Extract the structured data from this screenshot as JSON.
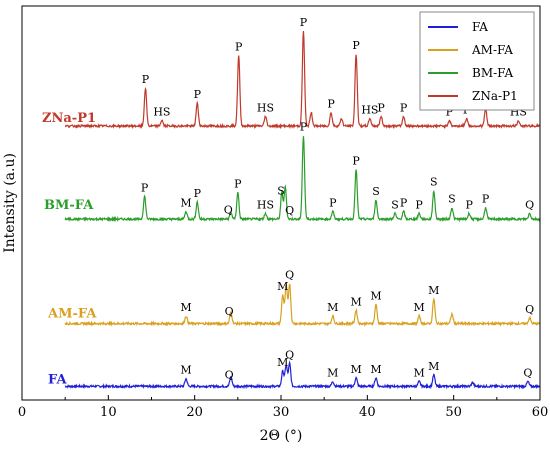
{
  "chart_data": {
    "type": "line",
    "title": "",
    "xlabel": "2Θ (°)",
    "ylabel": "Intensity (a.u)",
    "xlim": [
      0,
      60
    ],
    "xticks": [
      0,
      10,
      20,
      30,
      40,
      50,
      60
    ],
    "y_ticks_shown": false,
    "grid": false,
    "legend_position": "top-right",
    "legend": [
      {
        "name": "FA",
        "color": "#1f1fd6"
      },
      {
        "name": "AM-FA",
        "color": "#d9a020"
      },
      {
        "name": "BM-FA",
        "color": "#2a9d2a"
      },
      {
        "name": "ZNa-P1",
        "color": "#c0392b"
      }
    ],
    "series": [
      {
        "name": "FA",
        "label": "FA",
        "color": "#1f1fd6",
        "offset": 0,
        "baseline": 6,
        "peaks": [
          {
            "x": 19.0,
            "h": 8
          },
          {
            "x": 24.2,
            "h": 10
          },
          {
            "x": 30.2,
            "h": 16
          },
          {
            "x": 30.6,
            "h": 22
          },
          {
            "x": 31.0,
            "h": 24
          },
          {
            "x": 36.0,
            "h": 5
          },
          {
            "x": 38.7,
            "h": 9
          },
          {
            "x": 41.0,
            "h": 9
          },
          {
            "x": 46.0,
            "h": 5
          },
          {
            "x": 47.7,
            "h": 12
          },
          {
            "x": 52.2,
            "h": 4
          },
          {
            "x": 58.6,
            "h": 5
          }
        ],
        "annotations": [
          {
            "x": 19.0,
            "text": "M"
          },
          {
            "x": 24.0,
            "text": "Q"
          },
          {
            "x": 30.2,
            "text": "M"
          },
          {
            "x": 31.0,
            "text": "Q"
          },
          {
            "x": 36.0,
            "text": "M"
          },
          {
            "x": 38.7,
            "text": "M"
          },
          {
            "x": 41.0,
            "text": "M"
          },
          {
            "x": 46.0,
            "text": "M"
          },
          {
            "x": 47.7,
            "text": "M"
          },
          {
            "x": 58.6,
            "text": "Q"
          }
        ]
      },
      {
        "name": "AM-FA",
        "label": "AM-FA",
        "color": "#d9a020",
        "offset": 66,
        "baseline": 6,
        "peaks": [
          {
            "x": 19.0,
            "h": 8
          },
          {
            "x": 24.2,
            "h": 12
          },
          {
            "x": 30.2,
            "h": 30
          },
          {
            "x": 30.6,
            "h": 40
          },
          {
            "x": 31.0,
            "h": 42
          },
          {
            "x": 36.0,
            "h": 8
          },
          {
            "x": 38.7,
            "h": 14
          },
          {
            "x": 41.0,
            "h": 20
          },
          {
            "x": 46.0,
            "h": 8
          },
          {
            "x": 47.7,
            "h": 26
          },
          {
            "x": 49.8,
            "h": 10
          },
          {
            "x": 58.8,
            "h": 6
          }
        ],
        "annotations": [
          {
            "x": 19.0,
            "text": "M"
          },
          {
            "x": 24.0,
            "text": "Q"
          },
          {
            "x": 30.2,
            "text": "M"
          },
          {
            "x": 31.0,
            "text": "Q"
          },
          {
            "x": 36.0,
            "text": "M"
          },
          {
            "x": 38.7,
            "text": "M"
          },
          {
            "x": 41.0,
            "text": "M"
          },
          {
            "x": 46.0,
            "text": "M"
          },
          {
            "x": 47.7,
            "text": "M"
          },
          {
            "x": 58.8,
            "text": "Q"
          }
        ]
      },
      {
        "name": "BM-FA",
        "label": "BM-FA",
        "color": "#2a9d2a",
        "offset": 176,
        "baseline": 6,
        "peaks": [
          {
            "x": 14.2,
            "h": 24
          },
          {
            "x": 19.0,
            "h": 8
          },
          {
            "x": 20.3,
            "h": 18
          },
          {
            "x": 24.2,
            "h": 7
          },
          {
            "x": 25.0,
            "h": 28
          },
          {
            "x": 28.2,
            "h": 6
          },
          {
            "x": 30.1,
            "h": 28
          },
          {
            "x": 30.5,
            "h": 34
          },
          {
            "x": 32.6,
            "h": 88
          },
          {
            "x": 36.0,
            "h": 8
          },
          {
            "x": 38.7,
            "h": 52
          },
          {
            "x": 41.0,
            "h": 20
          },
          {
            "x": 43.2,
            "h": 6
          },
          {
            "x": 44.2,
            "h": 8
          },
          {
            "x": 46.0,
            "h": 6
          },
          {
            "x": 47.7,
            "h": 30
          },
          {
            "x": 49.8,
            "h": 12
          },
          {
            "x": 51.8,
            "h": 6
          },
          {
            "x": 53.7,
            "h": 12
          },
          {
            "x": 58.8,
            "h": 6
          }
        ],
        "annotations": [
          {
            "x": 14.2,
            "text": "P"
          },
          {
            "x": 19.0,
            "text": "M"
          },
          {
            "x": 20.3,
            "text": "P"
          },
          {
            "x": 23.9,
            "text": "Q"
          },
          {
            "x": 25.0,
            "text": "P"
          },
          {
            "x": 28.2,
            "text": "HS"
          },
          {
            "x": 30.0,
            "text": "S"
          },
          {
            "x": 31.0,
            "text": "Q"
          },
          {
            "x": 32.6,
            "text": "P"
          },
          {
            "x": 36.0,
            "text": "P"
          },
          {
            "x": 38.7,
            "text": "P"
          },
          {
            "x": 41.0,
            "text": "S"
          },
          {
            "x": 43.2,
            "text": "S"
          },
          {
            "x": 44.2,
            "text": "P"
          },
          {
            "x": 46.0,
            "text": "P"
          },
          {
            "x": 47.7,
            "text": "S"
          },
          {
            "x": 49.8,
            "text": "S"
          },
          {
            "x": 51.8,
            "text": "P"
          },
          {
            "x": 53.7,
            "text": "P"
          },
          {
            "x": 58.8,
            "text": "Q"
          }
        ]
      },
      {
        "name": "ZNa-P1",
        "label": "ZNa-P1",
        "color": "#c0392b",
        "offset": 274,
        "baseline": 6,
        "peaks": [
          {
            "x": 14.3,
            "h": 40
          },
          {
            "x": 16.2,
            "h": 6
          },
          {
            "x": 20.3,
            "h": 24
          },
          {
            "x": 25.1,
            "h": 74
          },
          {
            "x": 28.2,
            "h": 10
          },
          {
            "x": 32.6,
            "h": 100
          },
          {
            "x": 33.5,
            "h": 14
          },
          {
            "x": 35.8,
            "h": 14
          },
          {
            "x": 37.0,
            "h": 8
          },
          {
            "x": 38.7,
            "h": 76
          },
          {
            "x": 40.3,
            "h": 8
          },
          {
            "x": 41.6,
            "h": 10
          },
          {
            "x": 44.2,
            "h": 10
          },
          {
            "x": 49.5,
            "h": 6
          },
          {
            "x": 51.5,
            "h": 8
          },
          {
            "x": 53.7,
            "h": 18
          },
          {
            "x": 57.5,
            "h": 6
          }
        ],
        "annotations": [
          {
            "x": 14.3,
            "text": "P"
          },
          {
            "x": 16.2,
            "text": "HS"
          },
          {
            "x": 20.3,
            "text": "P"
          },
          {
            "x": 25.1,
            "text": "P"
          },
          {
            "x": 28.2,
            "text": "HS"
          },
          {
            "x": 32.6,
            "text": "P"
          },
          {
            "x": 35.8,
            "text": "P"
          },
          {
            "x": 38.7,
            "text": "P"
          },
          {
            "x": 40.3,
            "text": "HS"
          },
          {
            "x": 41.6,
            "text": "P"
          },
          {
            "x": 44.2,
            "text": "P"
          },
          {
            "x": 49.5,
            "text": "P"
          },
          {
            "x": 51.5,
            "text": "P"
          },
          {
            "x": 53.7,
            "text": "P"
          },
          {
            "x": 57.5,
            "text": "HS"
          }
        ]
      }
    ]
  }
}
